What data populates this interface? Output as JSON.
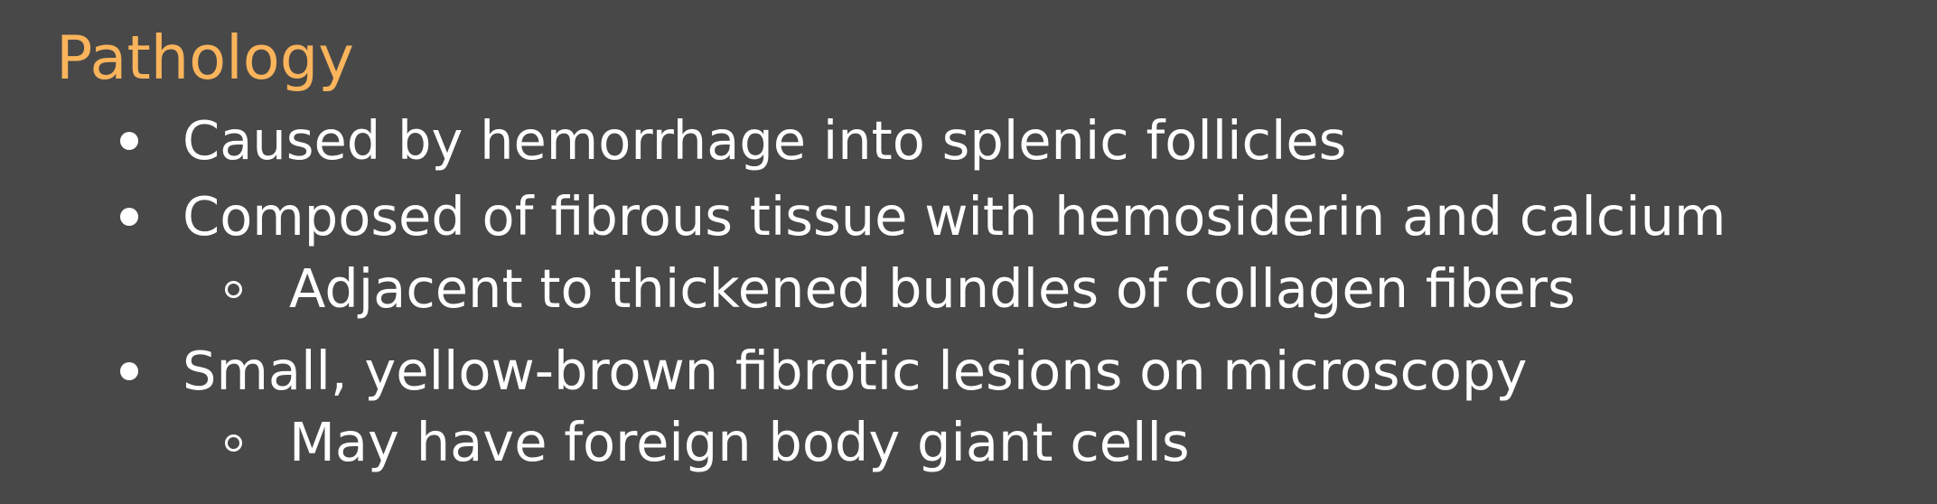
{
  "slide": {
    "title": "Pathology",
    "title_color": "#f9b45c",
    "background_color": "#484848",
    "text_color": "#ffffff",
    "bullets": [
      {
        "text": "Caused by hemorrhage into splenic follicles",
        "level": 1,
        "marker": "filled-circle"
      },
      {
        "text": "Composed of fibrous tissue with hemosiderin and calcium",
        "level": 1,
        "marker": "filled-circle"
      },
      {
        "text": "Adjacent to thickened bundles of collagen fibers",
        "level": 2,
        "marker": "hollow-circle"
      },
      {
        "text": "Small, yellow-brown fibrotic lesions on microscopy",
        "level": 1,
        "marker": "filled-circle"
      },
      {
        "text": "May have foreign body giant cells",
        "level": 2,
        "marker": "hollow-circle"
      }
    ]
  }
}
